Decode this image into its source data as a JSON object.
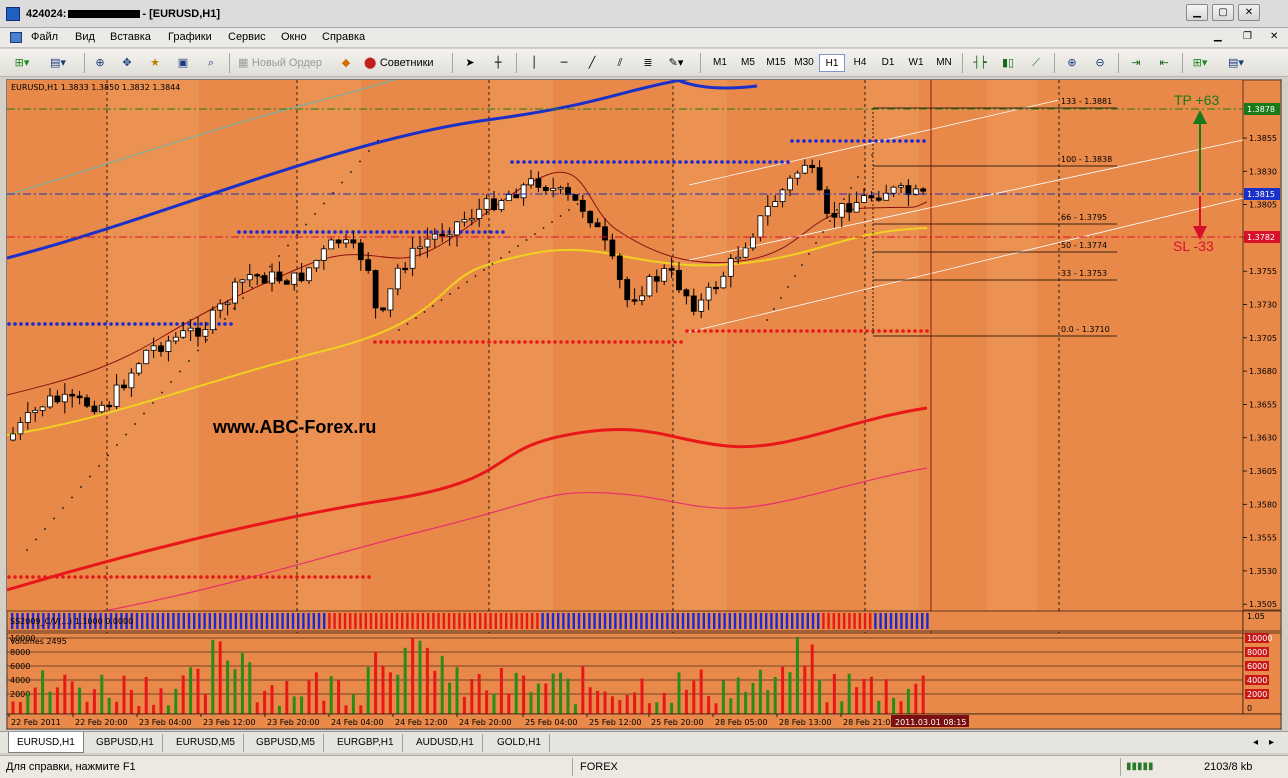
{
  "window": {
    "title_prefix": "424024:",
    "title_suffix": "- [EURUSD,H1]",
    "min_glyph": "▁",
    "max_glyph": "▢",
    "close_glyph": "✕"
  },
  "menu": [
    "Файл",
    "Вид",
    "Вставка",
    "Графики",
    "Сервис",
    "Окно",
    "Справка"
  ],
  "toolbar": {
    "new_order_label": "Новый Ордер",
    "experts_label": "Советники",
    "timeframes": [
      "M1",
      "M5",
      "M15",
      "M30",
      "H1",
      "H4",
      "D1",
      "W1",
      "MN"
    ],
    "active_timeframe": "H1"
  },
  "chart": {
    "header": "EURUSD,H1  1.3833 1.3850 1.3832 1.3844",
    "watermark": "www.ABC-Forex.ru",
    "tp_label": "TP +63",
    "sl_label": "SL -33",
    "tp_price": "1.3878",
    "current_price": "1.3815",
    "sl_price": "1.3782",
    "price_ticks": [
      "1.3855",
      "1.3830",
      "1.3805",
      "1.3780",
      "1.3755",
      "1.3730",
      "1.3705",
      "1.3680",
      "1.3655",
      "1.3630",
      "1.3605",
      "1.3580",
      "1.3555",
      "1.3530",
      "1.3505"
    ],
    "fib_levels": [
      {
        "label": "133 - 1.3881"
      },
      {
        "label": "100 - 1.3838"
      },
      {
        "label": "66 - 1.3795"
      },
      {
        "label": "50 - 1.3774"
      },
      {
        "label": "33 - 1.3753"
      },
      {
        "label": "0.0 - 1.3710"
      }
    ],
    "indicator_label": "SS2009_C/V(...) 1.1000 0.0000",
    "indicator_scale_top": "1.05",
    "volumes_label": "Volumes 2495",
    "volume_ticks": [
      "10000",
      "8000",
      "6000",
      "4000",
      "2000"
    ],
    "volume_right_ticks": [
      "10000",
      "8000",
      "6000",
      "4000",
      "2000",
      "0"
    ],
    "time_labels": [
      "22 Feb 2011",
      "22 Feb 20:00",
      "23 Feb 04:00",
      "23 Feb 12:00",
      "23 Feb 20:00",
      "24 Feb 04:00",
      "24 Feb 12:00",
      "24 Feb 20:00",
      "25 Feb 04:00",
      "25 Feb 12:00",
      "25 Feb 20:00",
      "28 Feb 05:00",
      "28 Feb 13:00",
      "28 Feb 21:00"
    ],
    "current_time": "2011.03.01 08:15",
    "colors": {
      "background": "#e8894a",
      "band_light": "#f0a060",
      "tp_green": "#1a7a1a",
      "sl_red": "#d8102a",
      "ma_blue": "#1a30c8",
      "ma_yellow": "#f0d020",
      "ma_red": "#e81818",
      "ma_pink": "#e8306a"
    }
  },
  "tabs": [
    "EURUSD,H1",
    "GBPUSD,H1",
    "EURUSD,M5",
    "GBPUSD,M5",
    "EURGBP,H1",
    "AUDUSD,H1",
    "GOLD,H1"
  ],
  "active_tab": "EURUSD,H1",
  "status": {
    "help": "Для справки, нажмите F1",
    "profile": "FOREX",
    "traffic": "2103/8 kb"
  }
}
